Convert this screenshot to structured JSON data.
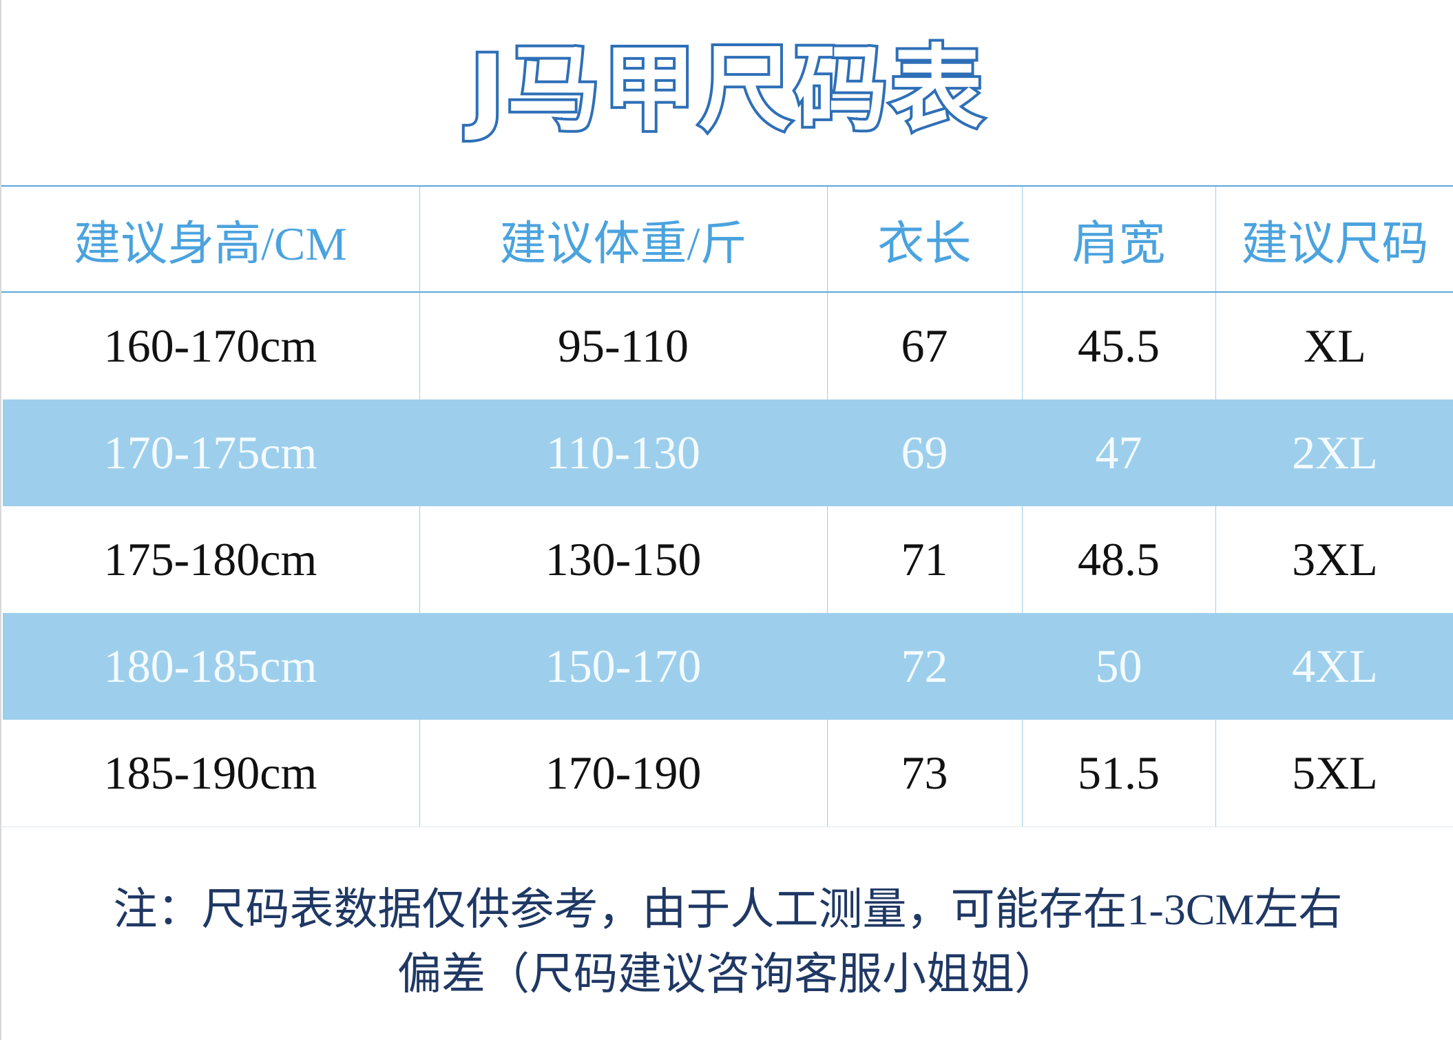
{
  "header": {
    "title": "J马甲尺码表"
  },
  "table": {
    "columns": [
      "建议身高/CM",
      "建议体重/斤",
      "衣长",
      "肩宽",
      "建议尺码"
    ],
    "rows": [
      [
        "160-170cm",
        "95-110",
        "67",
        "45.5",
        "XL"
      ],
      [
        "170-175cm",
        "110-130",
        "69",
        "47",
        "2XL"
      ],
      [
        "175-180cm",
        "130-150",
        "71",
        "48.5",
        "3XL"
      ],
      [
        "180-185cm",
        "150-170",
        "72",
        "50",
        "4XL"
      ],
      [
        "185-190cm",
        "170-190",
        "73",
        "51.5",
        "5XL"
      ]
    ]
  },
  "note": [
    "注：尺码表数据仅供参考，由于人工测量，可能存在1-3CM左右",
    "偏差（尺码建议咨询客服小姐姐）"
  ]
}
